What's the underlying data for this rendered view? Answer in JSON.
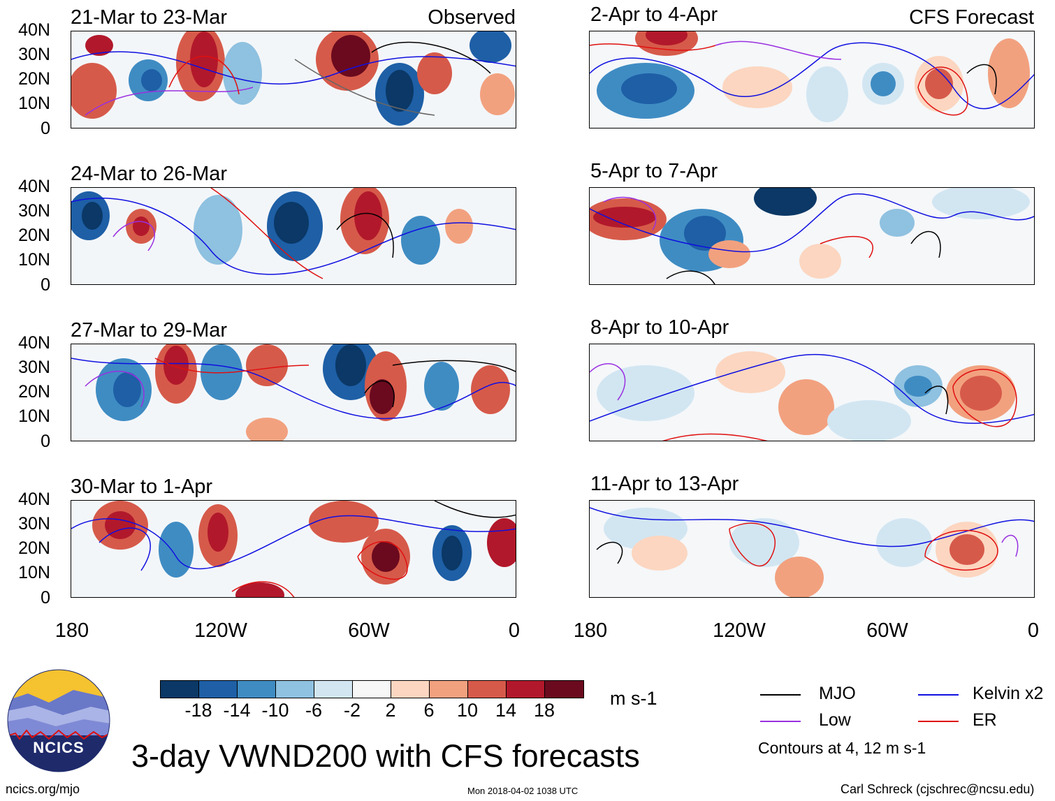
{
  "figure": {
    "title": "3-day VWND200 with CFS forecasts",
    "observed_label": "Observed",
    "forecast_label": "CFS Forecast",
    "lat_labels": [
      "40N",
      "30N",
      "20N",
      "10N",
      "0"
    ],
    "lon_labels": [
      "180",
      "120W",
      "60W",
      "0"
    ]
  },
  "observed_panels": [
    {
      "title": "21-Mar to 23-Mar"
    },
    {
      "title": "24-Mar to 26-Mar"
    },
    {
      "title": "27-Mar to 29-Mar"
    },
    {
      "title": "30-Mar to 1-Apr"
    }
  ],
  "forecast_panels": [
    {
      "title": "2-Apr to 4-Apr"
    },
    {
      "title": "5-Apr to 7-Apr"
    },
    {
      "title": "8-Apr to 10-Apr"
    },
    {
      "title": "11-Apr to 13-Apr"
    }
  ],
  "colorbar": {
    "unit": "m s-1",
    "labels": [
      "-18",
      "-14",
      "-10",
      "-6",
      "-2",
      "2",
      "6",
      "10",
      "14",
      "18"
    ],
    "colors": [
      "#0b3866",
      "#1e5fa6",
      "#3f8cc3",
      "#8fc1e0",
      "#d2e6f2",
      "#f7f7f7",
      "#fcd6c0",
      "#f2a17f",
      "#d65a4a",
      "#b2182b",
      "#6b0a1e"
    ]
  },
  "legend": {
    "mjo": "MJO",
    "kelvin": "Kelvin x2",
    "low": "Low",
    "er": "ER",
    "note": "Contours at 4, 12 m s-1",
    "colors": {
      "mjo": "#000000",
      "kelvin": "#1010e0",
      "low": "#9a30e0",
      "er": "#e01010"
    }
  },
  "footer": {
    "site": "ncics.org/mjo",
    "timestamp": "Mon 2018-04-02 1038 UTC",
    "author": "Carl Schreck (cjschrec@ncsu.edu)",
    "logo_text": "NCICS"
  }
}
